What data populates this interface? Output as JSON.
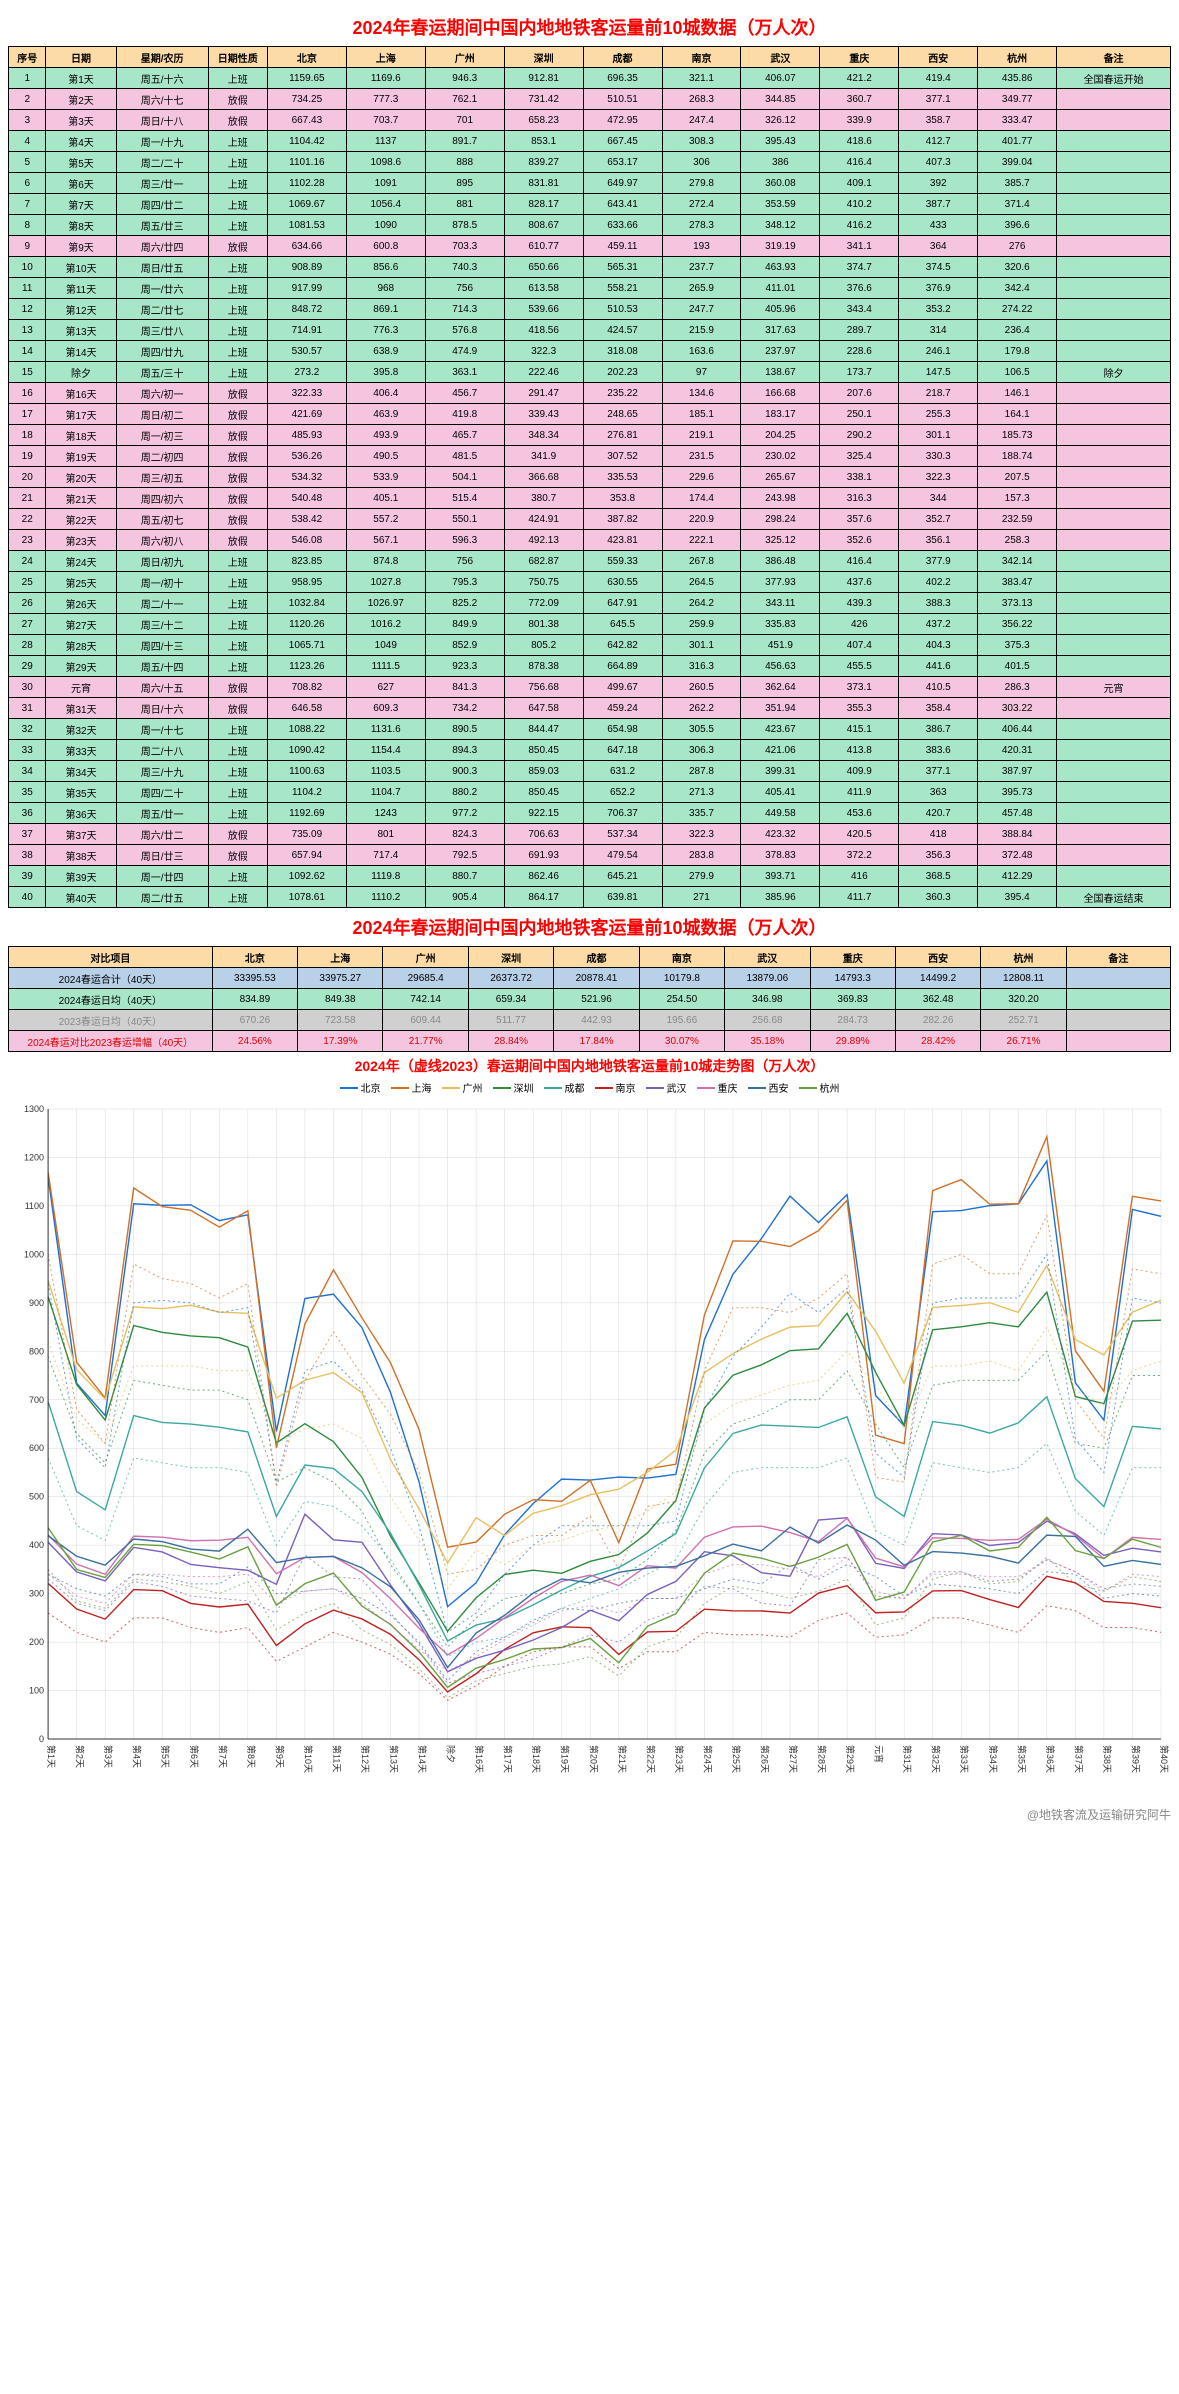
{
  "title": "2024年春运期间中国内地地铁客运量前10城数据（万人次）",
  "chart_title": "2024年（虚线2023）春运期间中国内地地铁客运量前10城走势图（万人次）",
  "footer": "@地铁客流及运输研究阿牛",
  "columns": [
    "序号",
    "日期",
    "星期/农历",
    "日期性质",
    "北京",
    "上海",
    "广州",
    "深圳",
    "成都",
    "南京",
    "武汉",
    "重庆",
    "西安",
    "杭州",
    "备注"
  ],
  "colors": {
    "header_bg": "#fddba6",
    "work_bg": "#a8e6c8",
    "holiday_bg": "#f5c5e0",
    "sum_blue": "#b8d0e8",
    "sum_green": "#a8e6c8",
    "sum_gray": "#d0d0d0",
    "sum_pink": "#f5c5e0",
    "grid": "#d8d8d8",
    "axis": "#666"
  },
  "city_colors": {
    "北京": "#1f6fd4",
    "上海": "#d07028",
    "广州": "#e6c060",
    "深圳": "#2e8b3d",
    "成都": "#3aa8a0",
    "南京": "#c02020",
    "武汉": "#7a5fc0",
    "重庆": "#d070b0",
    "西安": "#3a6fa0",
    "杭州": "#6aa040"
  },
  "cities": [
    "北京",
    "上海",
    "广州",
    "深圳",
    "成都",
    "南京",
    "武汉",
    "重庆",
    "西安",
    "杭州"
  ],
  "rows": [
    [
      1,
      "第1天",
      "周五/十六",
      "上班",
      1159.65,
      1169.6,
      946.3,
      912.81,
      696.35,
      321.1,
      406.07,
      421.2,
      419.4,
      435.86,
      "全国春运开始"
    ],
    [
      2,
      "第2天",
      "周六/十七",
      "放假",
      734.25,
      777.3,
      762.1,
      731.42,
      510.51,
      268.3,
      344.85,
      360.7,
      377.1,
      349.77,
      ""
    ],
    [
      3,
      "第3天",
      "周日/十八",
      "放假",
      667.43,
      703.7,
      701,
      658.23,
      472.95,
      247.4,
      326.12,
      339.9,
      358.7,
      333.47,
      ""
    ],
    [
      4,
      "第4天",
      "周一/十九",
      "上班",
      1104.42,
      1137,
      891.7,
      853.1,
      667.45,
      308.3,
      395.43,
      418.6,
      412.7,
      401.77,
      ""
    ],
    [
      5,
      "第5天",
      "周二/二十",
      "上班",
      1101.16,
      1098.6,
      888.0,
      839.27,
      653.17,
      306,
      386,
      416.4,
      407.3,
      399.04,
      ""
    ],
    [
      6,
      "第6天",
      "周三/廿一",
      "上班",
      1102.28,
      1091,
      895,
      831.81,
      649.97,
      279.8,
      360.08,
      409.1,
      392,
      385.7,
      ""
    ],
    [
      7,
      "第7天",
      "周四/廿二",
      "上班",
      1069.67,
      1056.4,
      881,
      828.17,
      643.41,
      272.4,
      353.59,
      410.2,
      387.7,
      371.4,
      ""
    ],
    [
      8,
      "第8天",
      "周五/廿三",
      "上班",
      1081.53,
      1090,
      878.5,
      808.67,
      633.66,
      278.3,
      348.12,
      416.2,
      433,
      396.6,
      ""
    ],
    [
      9,
      "第9天",
      "周六/廿四",
      "放假",
      634.66,
      600.8,
      703.3,
      610.77,
      459.11,
      193,
      319.19,
      341.1,
      364,
      276,
      ""
    ],
    [
      10,
      "第10天",
      "周日/廿五",
      "上班",
      908.89,
      856.6,
      740.3,
      650.66,
      565.31,
      237.7,
      463.93,
      374.7,
      374.5,
      320.6,
      ""
    ],
    [
      11,
      "第11天",
      "周一/廿六",
      "上班",
      917.99,
      968,
      756,
      613.58,
      558.21,
      265.9,
      411.01,
      376.6,
      376.9,
      342.4,
      ""
    ],
    [
      12,
      "第12天",
      "周二/廿七",
      "上班",
      848.72,
      869.1,
      714.3,
      539.66,
      510.53,
      247.7,
      405.96,
      343.4,
      353.2,
      274.22,
      ""
    ],
    [
      13,
      "第13天",
      "周三/廿八",
      "上班",
      714.91,
      776.3,
      576.8,
      418.56,
      424.57,
      215.9,
      317.63,
      289.7,
      314,
      236.4,
      ""
    ],
    [
      14,
      "第14天",
      "周四/廿九",
      "上班",
      530.57,
      638.9,
      474.9,
      322.3,
      318.08,
      163.6,
      237.97,
      228.6,
      246.1,
      179.8,
      ""
    ],
    [
      15,
      "除夕",
      "周五/三十",
      "上班",
      273.2,
      395.8,
      363.1,
      222.46,
      202.23,
      97,
      138.67,
      173.7,
      147.5,
      106.5,
      "除夕"
    ],
    [
      16,
      "第16天",
      "周六/初一",
      "放假",
      322.33,
      406.4,
      456.7,
      291.47,
      235.22,
      134.6,
      166.68,
      207.6,
      218.7,
      146.1,
      ""
    ],
    [
      17,
      "第17天",
      "周日/初二",
      "放假",
      421.69,
      463.9,
      419.8,
      339.43,
      248.65,
      185.1,
      183.17,
      250.1,
      255.3,
      164.1,
      ""
    ],
    [
      18,
      "第18天",
      "周一/初三",
      "放假",
      485.93,
      493.9,
      465.7,
      348.34,
      276.81,
      219.1,
      204.25,
      290.2,
      301.1,
      185.73,
      ""
    ],
    [
      19,
      "第19天",
      "周二/初四",
      "放假",
      536.26,
      490.5,
      481.5,
      341.9,
      307.52,
      231.5,
      230.02,
      325.4,
      330.3,
      188.74,
      ""
    ],
    [
      20,
      "第20天",
      "周三/初五",
      "放假",
      534.32,
      533.9,
      504.1,
      366.68,
      335.53,
      229.6,
      265.67,
      338.1,
      322.3,
      207.5,
      ""
    ],
    [
      21,
      "第21天",
      "周四/初六",
      "放假",
      540.48,
      405.1,
      515.4,
      380.7,
      353.8,
      174.4,
      243.98,
      316.3,
      344,
      157.3,
      ""
    ],
    [
      22,
      "第22天",
      "周五/初七",
      "放假",
      538.42,
      557.2,
      550.1,
      424.91,
      387.82,
      220.9,
      298.24,
      357.6,
      352.7,
      232.59,
      ""
    ],
    [
      23,
      "第23天",
      "周六/初八",
      "放假",
      546.08,
      567.1,
      596.3,
      492.13,
      423.81,
      222.1,
      325.12,
      352.6,
      356.1,
      258.3,
      ""
    ],
    [
      24,
      "第24天",
      "周日/初九",
      "上班",
      823.85,
      874.8,
      756,
      682.87,
      559.33,
      267.8,
      386.48,
      416.4,
      377.9,
      342.14,
      ""
    ],
    [
      25,
      "第25天",
      "周一/初十",
      "上班",
      958.95,
      1027.8,
      795.3,
      750.75,
      630.55,
      264.5,
      377.93,
      437.6,
      402.2,
      383.47,
      ""
    ],
    [
      26,
      "第26天",
      "周二/十一",
      "上班",
      1032.84,
      1026.97,
      825.2,
      772.09,
      647.91,
      264.2,
      343.11,
      439.3,
      388.3,
      373.13,
      ""
    ],
    [
      27,
      "第27天",
      "周三/十二",
      "上班",
      1120.26,
      1016.2,
      849.9,
      801.38,
      645.5,
      259.9,
      335.83,
      426,
      437.2,
      356.22,
      ""
    ],
    [
      28,
      "第28天",
      "周四/十三",
      "上班",
      1065.71,
      1049,
      852.9,
      805.2,
      642.82,
      301.1,
      451.9,
      407.4,
      404.3,
      375.3,
      ""
    ],
    [
      29,
      "第29天",
      "周五/十四",
      "上班",
      1123.26,
      1111.5,
      923.3,
      878.38,
      664.89,
      316.3,
      456.63,
      455.5,
      441.6,
      401.5,
      ""
    ],
    [
      30,
      "元宵",
      "周六/十五",
      "放假",
      708.82,
      627,
      841.3,
      756.68,
      499.67,
      260.5,
      362.64,
      373.1,
      410.5,
      286.3,
      "元宵"
    ],
    [
      31,
      "第31天",
      "周日/十六",
      "放假",
      646.58,
      609.3,
      734.2,
      647.58,
      459.24,
      262.2,
      351.94,
      355.3,
      358.4,
      303.22,
      ""
    ],
    [
      32,
      "第32天",
      "周一/十七",
      "上班",
      1088.22,
      1131.6,
      890.5,
      844.47,
      654.98,
      305.5,
      423.67,
      415.1,
      386.7,
      406.44,
      ""
    ],
    [
      33,
      "第33天",
      "周二/十八",
      "上班",
      1090.42,
      1154.4,
      894.3,
      850.45,
      647.18,
      306.3,
      421.06,
      413.8,
      383.6,
      420.31,
      ""
    ],
    [
      34,
      "第34天",
      "周三/十九",
      "上班",
      1100.63,
      1103.5,
      900.3,
      859.03,
      631.2,
      287.8,
      399.31,
      409.9,
      377.1,
      387.97,
      ""
    ],
    [
      35,
      "第35天",
      "周四/二十",
      "上班",
      1104.2,
      1104.7,
      880.2,
      850.45,
      652.2,
      271.3,
      405.41,
      411.9,
      363,
      395.73,
      ""
    ],
    [
      36,
      "第36天",
      "周五/廿一",
      "上班",
      1192.69,
      1243,
      977.2,
      922.15,
      706.37,
      335.7,
      449.58,
      453.6,
      420.7,
      457.48,
      ""
    ],
    [
      37,
      "第37天",
      "周六/廿二",
      "放假",
      735.09,
      801,
      824.3,
      706.63,
      537.34,
      322.3,
      423.32,
      420.5,
      418,
      388.84,
      ""
    ],
    [
      38,
      "第38天",
      "周日/廿三",
      "放假",
      657.94,
      717.4,
      792.5,
      691.93,
      479.54,
      283.8,
      378.83,
      372.2,
      356.3,
      372.48,
      ""
    ],
    [
      39,
      "第39天",
      "周一/廿四",
      "上班",
      1092.62,
      1119.8,
      880.7,
      862.46,
      645.21,
      279.9,
      393.71,
      416,
      368.5,
      412.29,
      ""
    ],
    [
      40,
      "第40天",
      "周二/廿五",
      "上班",
      1078.61,
      1110.2,
      905.4,
      864.17,
      639.81,
      271,
      385.96,
      411.7,
      360.3,
      395.4,
      "全国春运结束"
    ]
  ],
  "summary": {
    "header": "对比项目",
    "rows": [
      {
        "label": "2024春运合计（40天）",
        "style": "sum-blue",
        "v": [
          "33395.53",
          "33975.27",
          "29685.4",
          "26373.72",
          "20878.41",
          "10179.8",
          "13879.06",
          "14793.3",
          "14499.2",
          "12808.11"
        ]
      },
      {
        "label": "2024春运日均（40天）",
        "style": "sum-green",
        "v": [
          "834.89",
          "849.38",
          "742.14",
          "659.34",
          "521.96",
          "254.50",
          "346.98",
          "369.83",
          "362.48",
          "320.20"
        ]
      },
      {
        "label": "2023春运日均（40天）",
        "style": "sum-gray",
        "v": [
          "670.26",
          "723.58",
          "609.44",
          "511.77",
          "442.93",
          "195.66",
          "256.68",
          "284.73",
          "282.26",
          "252.71"
        ]
      },
      {
        "label": "2024春运对比2023春运增幅（40天）",
        "style": "sum-pink",
        "v": [
          "24.56%",
          "17.39%",
          "21.77%",
          "28.84%",
          "17.84%",
          "30.07%",
          "35.18%",
          "29.89%",
          "28.42%",
          "26.71%"
        ]
      }
    ]
  },
  "chart": {
    "ylim": [
      0,
      1300
    ],
    "ytick_step": 100,
    "xlabels": [
      "第1天",
      "第2天",
      "第3天",
      "第4天",
      "第5天",
      "第6天",
      "第7天",
      "第8天",
      "第9天",
      "第10天",
      "第11天",
      "第12天",
      "第13天",
      "第14天",
      "除夕",
      "第16天",
      "第17天",
      "第18天",
      "第19天",
      "第20天",
      "第21天",
      "第22天",
      "第23天",
      "第24天",
      "第25天",
      "第26天",
      "第27天",
      "第28天",
      "第29天",
      "元宵",
      "第31天",
      "第32天",
      "第33天",
      "第34天",
      "第35天",
      "第36天",
      "第37天",
      "第38天",
      "第39天",
      "第40天"
    ],
    "line_width": 1.4
  },
  "series_2023": {
    "北京": [
      940,
      620,
      560,
      900,
      905,
      900,
      880,
      890,
      530,
      760,
      780,
      720,
      600,
      440,
      220,
      260,
      340,
      400,
      440,
      440,
      440,
      440,
      450,
      680,
      790,
      850,
      920,
      880,
      930,
      590,
      540,
      900,
      910,
      910,
      910,
      1000,
      620,
      550,
      910,
      900
    ],
    "上海": [
      1000,
      680,
      610,
      980,
      950,
      940,
      910,
      940,
      520,
      740,
      840,
      750,
      670,
      550,
      340,
      350,
      400,
      420,
      420,
      460,
      350,
      480,
      490,
      760,
      890,
      890,
      880,
      910,
      960,
      540,
      530,
      980,
      1000,
      960,
      960,
      1080,
      700,
      620,
      970,
      960
    ],
    "广州": [
      820,
      660,
      610,
      770,
      770,
      770,
      760,
      760,
      610,
      640,
      650,
      620,
      500,
      410,
      310,
      390,
      360,
      400,
      410,
      430,
      440,
      470,
      510,
      650,
      690,
      710,
      730,
      740,
      800,
      730,
      640,
      770,
      770,
      780,
      760,
      850,
      720,
      690,
      760,
      780
    ],
    "深圳": [
      790,
      630,
      570,
      740,
      730,
      720,
      720,
      700,
      530,
      560,
      530,
      470,
      360,
      280,
      190,
      250,
      290,
      300,
      300,
      320,
      330,
      370,
      430,
      590,
      650,
      670,
      700,
      700,
      760,
      650,
      560,
      730,
      740,
      740,
      740,
      800,
      610,
      600,
      750,
      750
    ],
    "成都": [
      580,
      440,
      410,
      580,
      570,
      560,
      560,
      550,
      400,
      490,
      480,
      440,
      370,
      280,
      170,
      200,
      210,
      240,
      270,
      290,
      310,
      340,
      370,
      480,
      550,
      560,
      560,
      560,
      580,
      430,
      400,
      570,
      560,
      550,
      560,
      610,
      470,
      420,
      560,
      560
    ],
    "南京": [
      260,
      220,
      200,
      250,
      250,
      230,
      220,
      230,
      160,
      190,
      220,
      200,
      175,
      135,
      80,
      110,
      150,
      180,
      190,
      190,
      145,
      180,
      180,
      220,
      215,
      215,
      210,
      245,
      260,
      210,
      215,
      250,
      250,
      235,
      220,
      275,
      265,
      230,
      230,
      220
    ],
    "武汉": [
      330,
      280,
      265,
      325,
      315,
      295,
      290,
      285,
      260,
      380,
      335,
      330,
      260,
      195,
      115,
      135,
      150,
      165,
      190,
      215,
      200,
      245,
      265,
      315,
      310,
      280,
      275,
      370,
      375,
      295,
      290,
      345,
      345,
      325,
      330,
      370,
      345,
      310,
      320,
      315
    ],
    "重庆": [
      340,
      295,
      280,
      340,
      340,
      335,
      335,
      340,
      280,
      305,
      310,
      280,
      235,
      185,
      140,
      170,
      205,
      235,
      265,
      275,
      260,
      290,
      290,
      340,
      360,
      360,
      350,
      335,
      375,
      305,
      290,
      340,
      340,
      335,
      335,
      370,
      345,
      305,
      340,
      335
    ],
    "西安": [
      340,
      310,
      295,
      340,
      335,
      320,
      320,
      355,
      300,
      305,
      310,
      290,
      255,
      200,
      120,
      180,
      210,
      245,
      270,
      265,
      280,
      290,
      290,
      310,
      330,
      320,
      360,
      330,
      360,
      335,
      295,
      320,
      315,
      310,
      300,
      345,
      340,
      290,
      300,
      295
    ],
    "杭州": [
      350,
      285,
      270,
      330,
      325,
      315,
      300,
      325,
      225,
      260,
      280,
      225,
      195,
      145,
      85,
      120,
      135,
      150,
      155,
      170,
      130,
      190,
      210,
      280,
      315,
      305,
      290,
      305,
      330,
      235,
      250,
      330,
      345,
      320,
      325,
      375,
      320,
      305,
      335,
      325
    ]
  }
}
